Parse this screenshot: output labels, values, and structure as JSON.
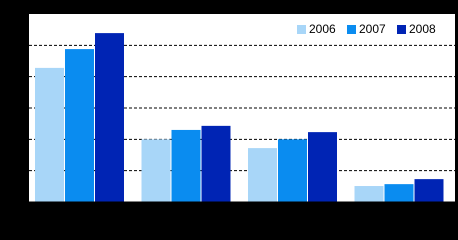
{
  "chart_data": {
    "type": "bar",
    "categories": [
      null,
      null,
      null,
      null
    ],
    "series": [
      {
        "name": "2006",
        "color": "#a8d6f8",
        "values": [
          4.28,
          2.0,
          1.72,
          0.51
        ]
      },
      {
        "name": "2007",
        "color": "#0a8cf0",
        "values": [
          4.88,
          2.3,
          2.0,
          0.57
        ]
      },
      {
        "name": "2008",
        "color": "#0024b4",
        "values": [
          5.39,
          2.43,
          2.23,
          0.73
        ]
      }
    ],
    "ylim": [
      0,
      6
    ],
    "yticks": [
      1,
      2,
      3,
      4,
      5
    ],
    "grid": true,
    "legend": "top-right"
  }
}
